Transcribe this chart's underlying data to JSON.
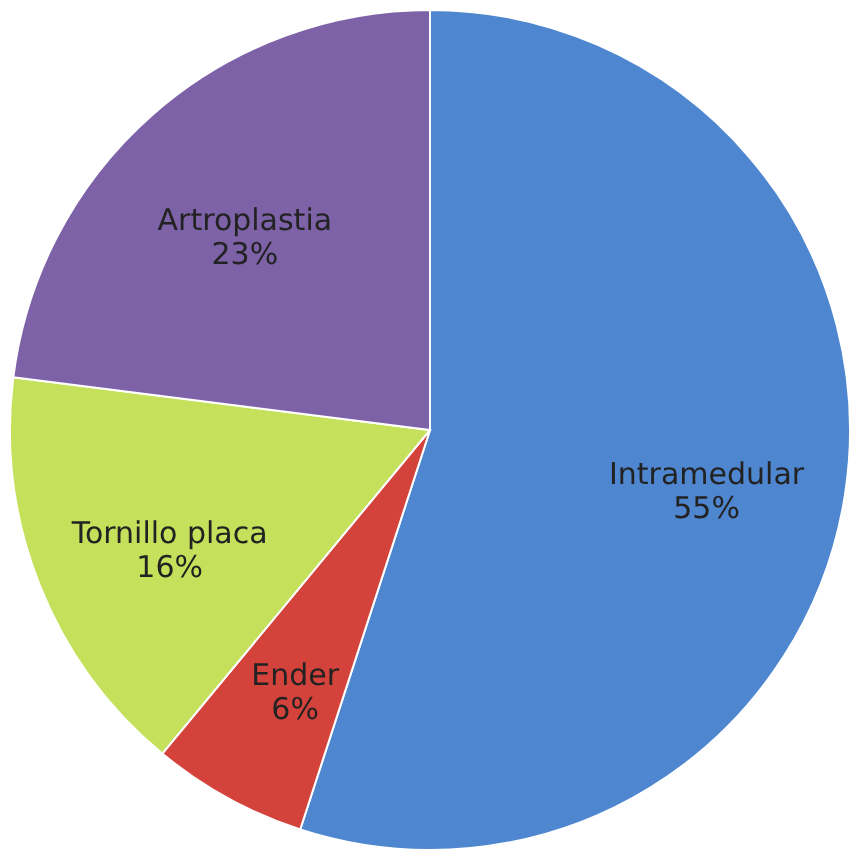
{
  "chart_data": {
    "type": "pie",
    "categories": [
      "Intramedular",
      "Ender",
      "Tornillo placa",
      "Artroplastia"
    ],
    "values": [
      55,
      6,
      16,
      23
    ],
    "colors": [
      "#4f86d0",
      "#d4433b",
      "#c5e05a",
      "#7e62a8"
    ],
    "value_labels": [
      "55%",
      "6%",
      "16%",
      "23%"
    ],
    "legend": false
  }
}
